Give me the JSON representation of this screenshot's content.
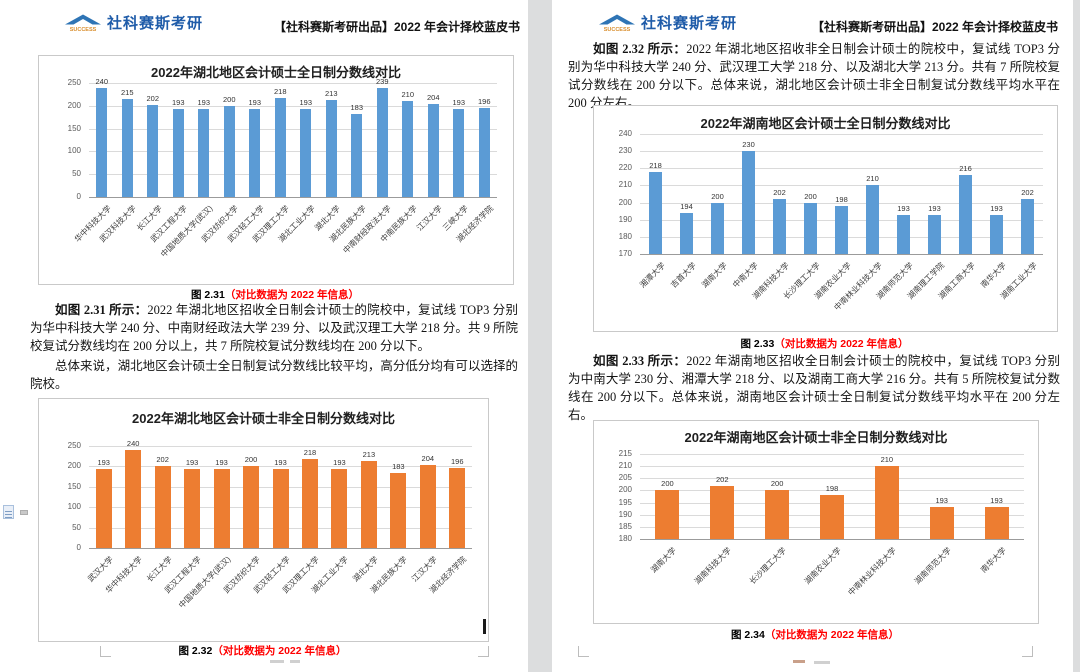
{
  "header": {
    "brand": "社科赛斯考研",
    "brand_sub": "SUCCESS",
    "doc_title": "【社科赛斯考研出品】2022 年会计择校蓝皮书"
  },
  "figures": {
    "fig31": {
      "label": "图 2.31",
      "note": "（对比数据为 2022 年信息）"
    },
    "fig32": {
      "label": "图 2.32",
      "note": "（对比数据为 2022 年信息）"
    },
    "fig33": {
      "label": "图 2.33",
      "note": "（对比数据为 2022 年信息）"
    },
    "fig34": {
      "label": "图 2.34",
      "note": "（对比数据为 2022 年信息）"
    }
  },
  "left_page": {
    "para1": {
      "lead": "如图 2.31 所示：",
      "text": "2022 年湖北地区招收全日制会计硕士的院校中，复试线 TOP3 分别为华中科技大学 240 分、中南财经政法大学 239 分、以及武汉理工大学 218 分。共 9 所院校复试分数线均在 200 分以上，共 7 所院校复试分数线均在 200 分以下。"
    },
    "para2": {
      "text": "总体来说，湖北地区会计硕士全日制复试分数线比较平均，高分低分均有可以选择的院校。"
    }
  },
  "right_page": {
    "para1": {
      "lead": "如图 2.32 所示：",
      "text": "2022 年湖北地区招收非全日制会计硕士的院校中，复试线 TOP3 分别为华中科技大学 240 分、武汉理工大学 218 分、以及湖北大学 213 分。共有 7 所院校复试分数线在 200 分以下。总体来说，湖北地区会计硕士非全日制复试分数线平均水平在 200 分左右。"
    },
    "para2": {
      "lead": "如图 2.33 所示：",
      "text": "2022 年湖南地区招收全日制会计硕士的院校中，复试线 TOP3 分别为中南大学 230 分、湘潭大学 218 分、以及湖南工商大学 216 分。共有 5 所院校复试分数线在 200 分以下。总体来说，湖南地区会计硕士全日制复试分数线平均水平在 200 分左右。"
    }
  },
  "chart_data": [
    {
      "type": "bar",
      "title": "2022年湖北地区会计硕士全日制分数线对比",
      "categories": [
        "华中科技大学",
        "武汉科技大学",
        "长江大学",
        "武汉工程大学",
        "中国地质大学(武汉)",
        "武汉纺织大学",
        "武汉轻工大学",
        "武汉理工大学",
        "湖北工业大学",
        "湖北大学",
        "湖北民族大学",
        "中南财经政法大学",
        "中南民族大学",
        "江汉大学",
        "三峡大学",
        "湖北经济学院"
      ],
      "values": [
        240,
        215,
        202,
        193,
        193,
        200,
        193,
        218,
        193,
        213,
        183,
        239,
        210,
        204,
        193,
        196
      ],
      "ylim": [
        0,
        250
      ],
      "yticks": [
        0,
        50,
        100,
        150,
        200,
        250
      ],
      "bar_color": "#5B9BD5",
      "grid": true,
      "legend": "none",
      "data_labels": true
    },
    {
      "type": "bar",
      "title": "2022年湖北地区会计硕士非全日制分数线对比",
      "categories": [
        "武汉大学",
        "华中科技大学",
        "长江大学",
        "武汉工程大学",
        "中国地质大学(武汉)",
        "武汉纺织大学",
        "武汉轻工大学",
        "武汉理工大学",
        "湖北工业大学",
        "湖北大学",
        "湖北民族大学",
        "江汉大学",
        "湖北经济学院"
      ],
      "values": [
        193,
        240,
        202,
        193,
        193,
        200,
        193,
        218,
        193,
        213,
        183,
        204,
        196
      ],
      "ylim": [
        0,
        250
      ],
      "yticks": [
        0,
        50,
        100,
        150,
        200,
        250
      ],
      "bar_color": "#ED7D31",
      "grid": true,
      "legend": "none",
      "data_labels": true
    },
    {
      "type": "bar",
      "title": "2022年湖南地区会计硕士全日制分数线对比",
      "categories": [
        "湘潭大学",
        "吉首大学",
        "湖南大学",
        "中南大学",
        "湖南科技大学",
        "长沙理工大学",
        "湖南农业大学",
        "中南林业科技大学",
        "湖南师范大学",
        "湖南理工学院",
        "湖南工商大学",
        "南华大学",
        "湖南工业大学"
      ],
      "values": [
        218,
        194,
        200,
        230,
        202,
        200,
        198,
        210,
        193,
        193,
        216,
        193,
        202
      ],
      "ylim": [
        170,
        240
      ],
      "yticks": [
        170,
        180,
        190,
        200,
        210,
        220,
        230,
        240
      ],
      "bar_color": "#5B9BD5",
      "grid": true,
      "legend": "none",
      "data_labels": true
    },
    {
      "type": "bar",
      "title": "2022年湖南地区会计硕士非全日制分数线对比",
      "categories": [
        "湖南大学",
        "湖南科技大学",
        "长沙理工大学",
        "湖南农业大学",
        "中南林业科技大学",
        "湖南师范大学",
        "南华大学"
      ],
      "values": [
        200,
        202,
        200,
        198,
        210,
        193,
        193
      ],
      "ylim": [
        180,
        215
      ],
      "yticks": [
        180,
        185,
        190,
        195,
        200,
        205,
        210,
        215
      ],
      "bar_color": "#ED7D31",
      "grid": true,
      "legend": "none",
      "data_labels": true
    }
  ]
}
